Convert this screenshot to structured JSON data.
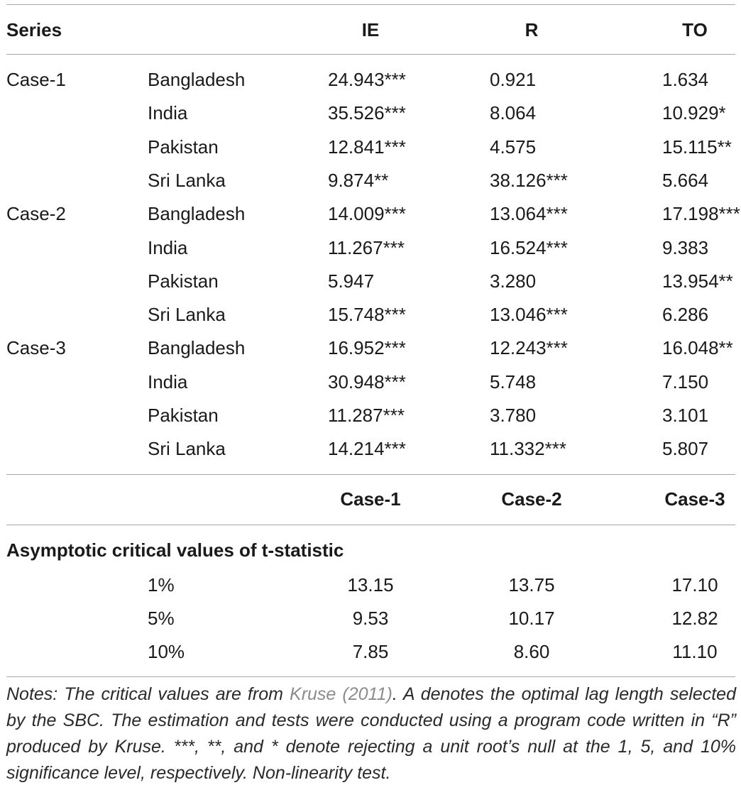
{
  "header": {
    "series": "Series",
    "ie": "IE",
    "r": "R",
    "to": "TO"
  },
  "rows": [
    {
      "case": "Case-1",
      "country": "Bangladesh",
      "ie": "24.943",
      "ie_sig": "***",
      "r": "0.921",
      "r_sig": "",
      "to": "1.634",
      "to_sig": ""
    },
    {
      "case": "",
      "country": "India",
      "ie": "35.526",
      "ie_sig": "***",
      "r": "8.064",
      "r_sig": "",
      "to": "10.929",
      "to_sig": "*"
    },
    {
      "case": "",
      "country": "Pakistan",
      "ie": "12.841",
      "ie_sig": "***",
      "r": "4.575",
      "r_sig": "",
      "to": "15.115",
      "to_sig": "**"
    },
    {
      "case": "",
      "country": "Sri Lanka",
      "ie": "9.874",
      "ie_sig": "**",
      "r": "38.126",
      "r_sig": "***",
      "to": "5.664",
      "to_sig": ""
    },
    {
      "case": "Case-2",
      "country": "Bangladesh",
      "ie": "14.009",
      "ie_sig": "***",
      "r": "13.064",
      "r_sig": "***",
      "to": "17.198",
      "to_sig": "***"
    },
    {
      "case": "",
      "country": "India",
      "ie": "11.267",
      "ie_sig": "***",
      "r": "16.524",
      "r_sig": "***",
      "to": "9.383",
      "to_sig": ""
    },
    {
      "case": "",
      "country": "Pakistan",
      "ie": "5.947",
      "ie_sig": "",
      "r": "3.280",
      "r_sig": "",
      "to": "13.954",
      "to_sig": "**"
    },
    {
      "case": "",
      "country": "Sri Lanka",
      "ie": "15.748",
      "ie_sig": "***",
      "r": "13.046",
      "r_sig": "***",
      "to": "6.286",
      "to_sig": ""
    },
    {
      "case": "Case-3",
      "country": "Bangladesh",
      "ie": "16.952",
      "ie_sig": "***",
      "r": "12.243",
      "r_sig": "***",
      "to": "16.048",
      "to_sig": "**"
    },
    {
      "case": "",
      "country": "India",
      "ie": "30.948",
      "ie_sig": "***",
      "r": "5.748",
      "r_sig": "",
      "to": "7.150",
      "to_sig": ""
    },
    {
      "case": "",
      "country": "Pakistan",
      "ie": "11.287",
      "ie_sig": "***",
      "r": "3.780",
      "r_sig": "",
      "to": "3.101",
      "to_sig": ""
    },
    {
      "case": "",
      "country": "Sri Lanka",
      "ie": "14.214",
      "ie_sig": "***",
      "r": "11.332",
      "r_sig": "***",
      "to": "5.807",
      "to_sig": ""
    }
  ],
  "crit_header": {
    "case1": "Case-1",
    "case2": "Case-2",
    "case3": "Case-3"
  },
  "crit_title": "Asymptotic critical values of t-statistic",
  "crit_rows": [
    {
      "level": "1%",
      "case1": "13.15",
      "case2": "13.75",
      "case3": "17.10"
    },
    {
      "level": "5%",
      "case1": "9.53",
      "case2": "10.17",
      "case3": "12.82"
    },
    {
      "level": "10%",
      "case1": "7.85",
      "case2": "8.60",
      "case3": "11.10"
    }
  ],
  "notes": {
    "before": "Notes: The critical values are from ",
    "ref": "Kruse (2011)",
    "after": ". A denotes the optimal lag length selected by the SBC. The estimation and tests were conducted using a program code written in “R” produced by Kruse. ***, **, and * denote rejecting a unit root’s null at the 1, 5, and 10% significance level, respectively. Non-linearity test."
  }
}
